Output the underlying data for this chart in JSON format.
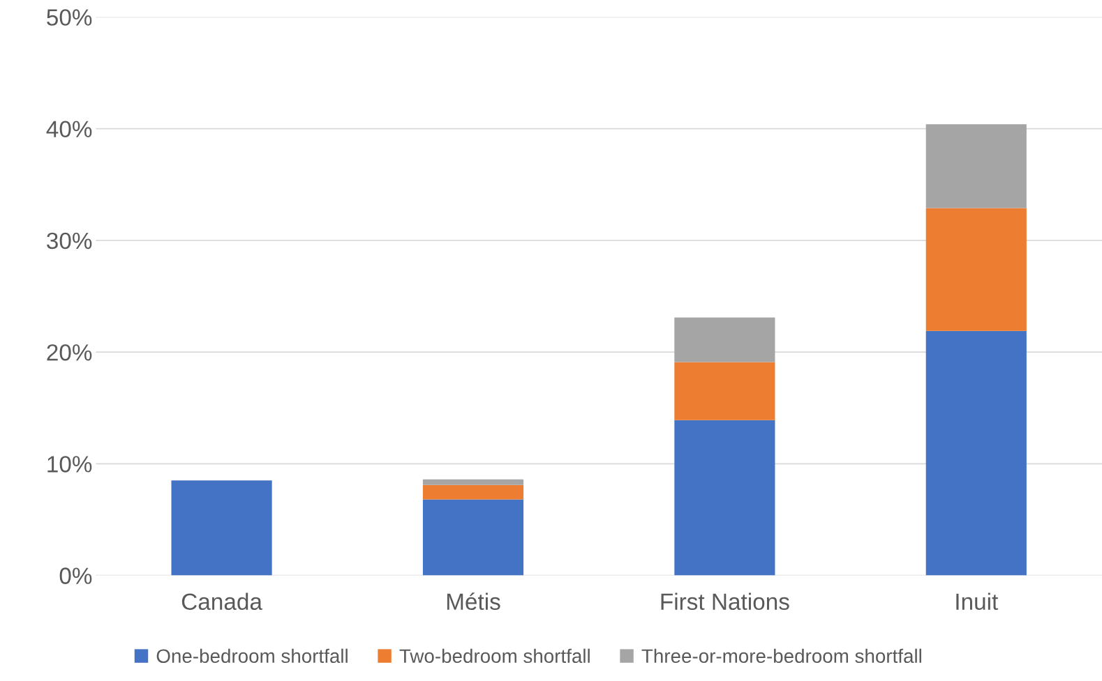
{
  "chart_data": {
    "type": "bar",
    "stacked": true,
    "categories": [
      "Canada",
      "Métis",
      "First Nations",
      "Inuit"
    ],
    "series": [
      {
        "name": "One-bedroom shortfall",
        "color": "#4472c4",
        "values": [
          8.5,
          6.8,
          13.9,
          21.9
        ]
      },
      {
        "name": "Two-bedroom shortfall",
        "color": "#ed7d31",
        "values": [
          null,
          1.3,
          5.2,
          11.0
        ]
      },
      {
        "name": "Three-or-more-bedroom shortfall",
        "color": "#a5a5a5",
        "values": [
          null,
          0.5,
          4.0,
          7.5
        ]
      }
    ],
    "ylim": [
      0,
      50
    ],
    "yticks": [
      {
        "value": 0,
        "label": "0%"
      },
      {
        "value": 10,
        "label": "10%"
      },
      {
        "value": 20,
        "label": "20%"
      },
      {
        "value": 30,
        "label": "30%"
      },
      {
        "value": 40,
        "label": "40%"
      },
      {
        "value": 50,
        "label": "50%"
      }
    ],
    "grid": "y",
    "legend": "bottom"
  }
}
